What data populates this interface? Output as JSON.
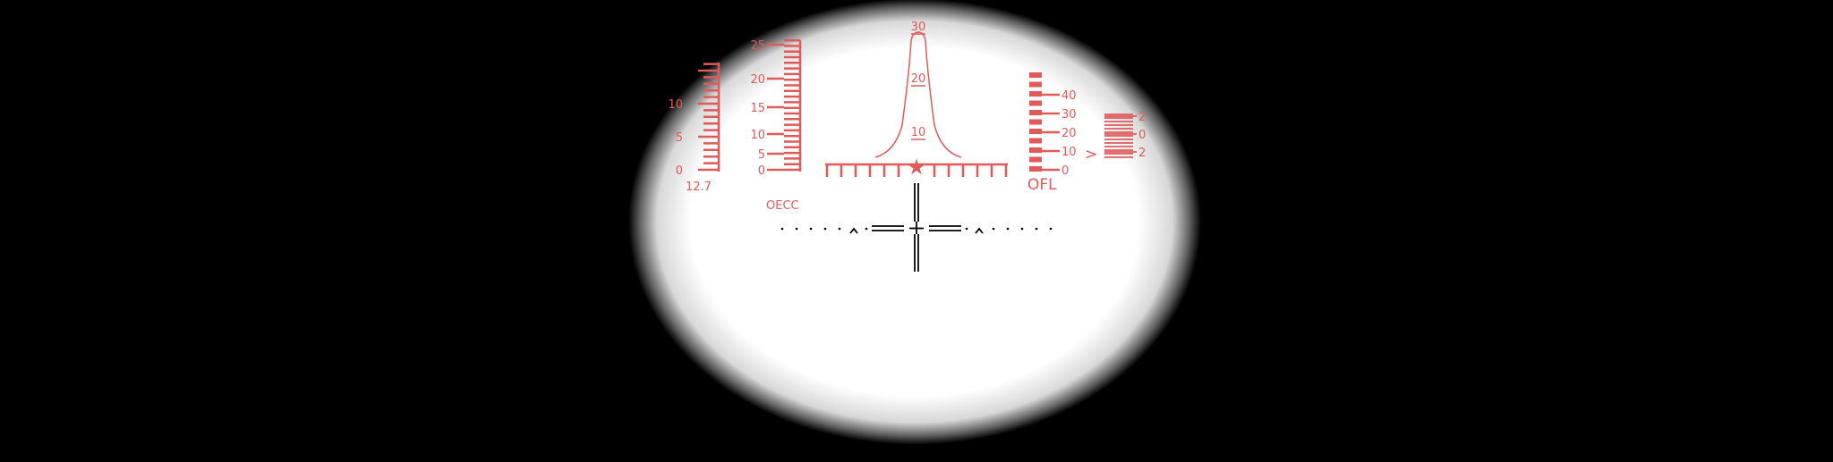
{
  "reticle": {
    "color": "#e05a5a",
    "crosshair_color": "#000000",
    "left_scale": {
      "ticks": [
        "0",
        "5",
        "10"
      ],
      "caliber_label": "12.7"
    },
    "range_scale": {
      "ticks": [
        "0",
        "5",
        "10",
        "15",
        "20",
        "25"
      ],
      "mode_label": "OECC"
    },
    "top_curve": {
      "ticks": [
        "10",
        "20",
        "30"
      ]
    },
    "right_scale": {
      "ticks": [
        "0",
        "10",
        "20",
        "30",
        "40"
      ],
      "mode_label": "OFL"
    },
    "far_right_scale": {
      "ticks": [
        "2",
        "0",
        "2"
      ],
      "pointer": ">"
    }
  }
}
